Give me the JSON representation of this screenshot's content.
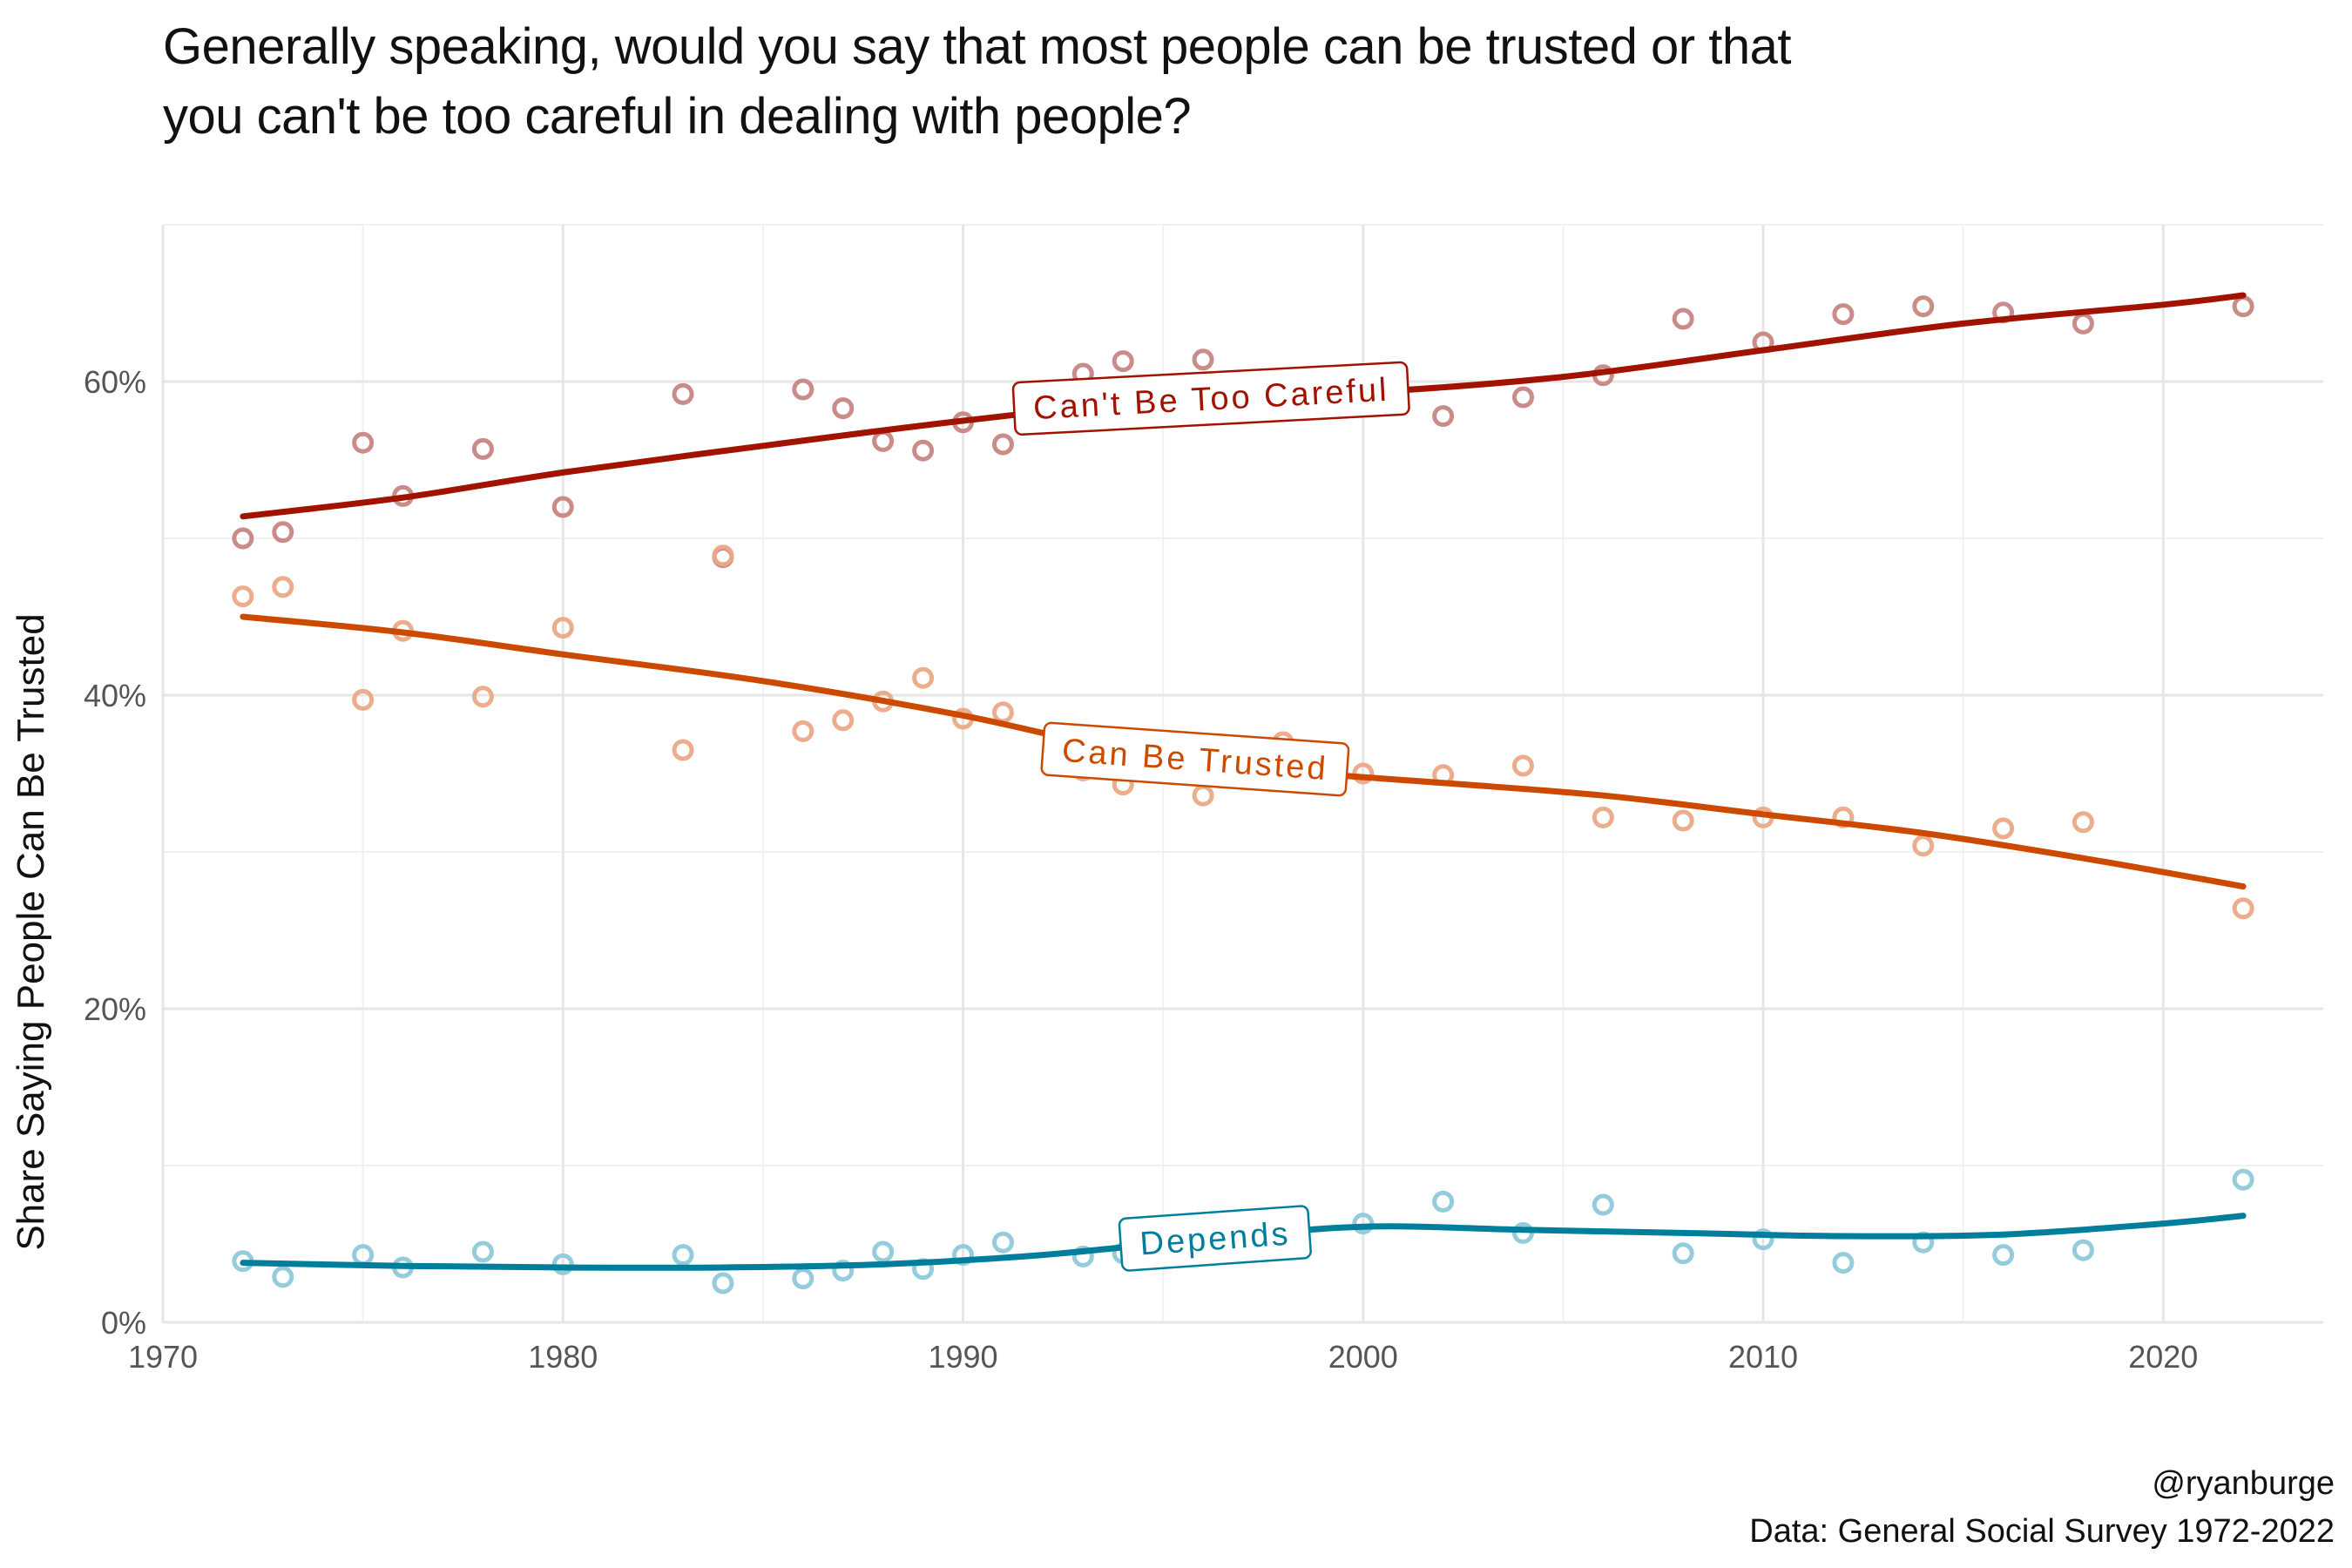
{
  "title": {
    "line1": "Generally speaking, would you say that most people can be trusted or that",
    "line2": "you can't be too careful in dealing with people?"
  },
  "caption": {
    "author": "@ryanburge",
    "source": "Data: General Social Survey 1972-2022"
  },
  "chart_data": {
    "type": "scatter",
    "ylabel": "Share Saying People Can Be Trusted",
    "xlabel": "",
    "xlim": [
      1970,
      2024
    ],
    "ylim": [
      0,
      0.7
    ],
    "x_ticks": [
      1970,
      1980,
      1990,
      2000,
      2010,
      2020
    ],
    "x_tick_labels": [
      "1970",
      "1980",
      "1990",
      "2000",
      "2010",
      "2020"
    ],
    "y_ticks": [
      0,
      0.2,
      0.4,
      0.6
    ],
    "y_tick_labels": [
      "0%",
      "20%",
      "40%",
      "60%"
    ],
    "grid": true,
    "series": [
      {
        "name": "Can't Be Too Careful",
        "color": "#a11300",
        "point_color": "#c78682",
        "label_rotation": -3,
        "points": [
          [
            1972,
            0.5
          ],
          [
            1973,
            0.504
          ],
          [
            1975,
            0.561
          ],
          [
            1976,
            0.527
          ],
          [
            1978,
            0.557
          ],
          [
            1980,
            0.52
          ],
          [
            1983,
            0.592
          ],
          [
            1984,
            0.488
          ],
          [
            1986,
            0.595
          ],
          [
            1987,
            0.583
          ],
          [
            1988,
            0.562
          ],
          [
            1989,
            0.556
          ],
          [
            1990,
            0.574
          ],
          [
            1991,
            0.56
          ],
          [
            1993,
            0.605
          ],
          [
            1994,
            0.613
          ],
          [
            1996,
            0.614
          ],
          [
            1998,
            0.59
          ],
          [
            2000,
            0.585
          ],
          [
            2002,
            0.578
          ],
          [
            2004,
            0.59
          ],
          [
            2006,
            0.604
          ],
          [
            2008,
            0.64
          ],
          [
            2010,
            0.625
          ],
          [
            2012,
            0.643
          ],
          [
            2014,
            0.648
          ],
          [
            2016,
            0.644
          ],
          [
            2018,
            0.637
          ],
          [
            2022,
            0.648
          ]
        ],
        "trend": [
          [
            1972,
            0.514
          ],
          [
            1976,
            0.526
          ],
          [
            1980,
            0.542
          ],
          [
            1985,
            0.559
          ],
          [
            1990,
            0.575
          ],
          [
            1995,
            0.588
          ],
          [
            2000,
            0.593
          ],
          [
            2005,
            0.603
          ],
          [
            2010,
            0.62
          ],
          [
            2015,
            0.637
          ],
          [
            2020,
            0.649
          ],
          [
            2022,
            0.655
          ]
        ]
      },
      {
        "name": "Can Be Trusted",
        "color": "#cc4a00",
        "point_color": "#eaa986",
        "label_rotation": 4,
        "points": [
          [
            1972,
            0.463
          ],
          [
            1973,
            0.469
          ],
          [
            1975,
            0.397
          ],
          [
            1976,
            0.441
          ],
          [
            1978,
            0.399
          ],
          [
            1980,
            0.443
          ],
          [
            1983,
            0.365
          ],
          [
            1984,
            0.489
          ],
          [
            1986,
            0.377
          ],
          [
            1987,
            0.384
          ],
          [
            1988,
            0.396
          ],
          [
            1989,
            0.411
          ],
          [
            1990,
            0.385
          ],
          [
            1991,
            0.389
          ],
          [
            1993,
            0.352
          ],
          [
            1994,
            0.343
          ],
          [
            1996,
            0.336
          ],
          [
            1998,
            0.37
          ],
          [
            2000,
            0.35
          ],
          [
            2002,
            0.349
          ],
          [
            2004,
            0.355
          ],
          [
            2006,
            0.322
          ],
          [
            2008,
            0.32
          ],
          [
            2010,
            0.322
          ],
          [
            2012,
            0.322
          ],
          [
            2014,
            0.304
          ],
          [
            2016,
            0.315
          ],
          [
            2018,
            0.319
          ],
          [
            2022,
            0.264
          ]
        ],
        "trend": [
          [
            1972,
            0.45
          ],
          [
            1976,
            0.44
          ],
          [
            1980,
            0.426
          ],
          [
            1985,
            0.409
          ],
          [
            1990,
            0.387
          ],
          [
            1994,
            0.365
          ],
          [
            1998,
            0.352
          ],
          [
            2002,
            0.344
          ],
          [
            2006,
            0.336
          ],
          [
            2010,
            0.324
          ],
          [
            2014,
            0.312
          ],
          [
            2018,
            0.296
          ],
          [
            2022,
            0.278
          ]
        ]
      },
      {
        "name": "Depends",
        "color": "#007e9c",
        "point_color": "#8ec9d9",
        "label_rotation": -4,
        "points": [
          [
            1972,
            0.039
          ],
          [
            1973,
            0.029
          ],
          [
            1975,
            0.043
          ],
          [
            1976,
            0.035
          ],
          [
            1978,
            0.045
          ],
          [
            1980,
            0.037
          ],
          [
            1983,
            0.043
          ],
          [
            1984,
            0.025
          ],
          [
            1986,
            0.028
          ],
          [
            1987,
            0.033
          ],
          [
            1988,
            0.045
          ],
          [
            1989,
            0.034
          ],
          [
            1990,
            0.043
          ],
          [
            1991,
            0.051
          ],
          [
            1993,
            0.042
          ],
          [
            1994,
            0.044
          ],
          [
            1996,
            0.05
          ],
          [
            1998,
            0.055
          ],
          [
            2000,
            0.063
          ],
          [
            2002,
            0.077
          ],
          [
            2004,
            0.057
          ],
          [
            2006,
            0.075
          ],
          [
            2008,
            0.044
          ],
          [
            2010,
            0.053
          ],
          [
            2012,
            0.038
          ],
          [
            2014,
            0.051
          ],
          [
            2016,
            0.043
          ],
          [
            2018,
            0.046
          ],
          [
            2022,
            0.091
          ]
        ],
        "trend": [
          [
            1972,
            0.038
          ],
          [
            1976,
            0.036
          ],
          [
            1980,
            0.035
          ],
          [
            1984,
            0.035
          ],
          [
            1988,
            0.037
          ],
          [
            1992,
            0.043
          ],
          [
            1996,
            0.053
          ],
          [
            2000,
            0.061
          ],
          [
            2004,
            0.059
          ],
          [
            2008,
            0.057
          ],
          [
            2012,
            0.055
          ],
          [
            2016,
            0.056
          ],
          [
            2020,
            0.063
          ],
          [
            2022,
            0.068
          ]
        ]
      }
    ]
  }
}
